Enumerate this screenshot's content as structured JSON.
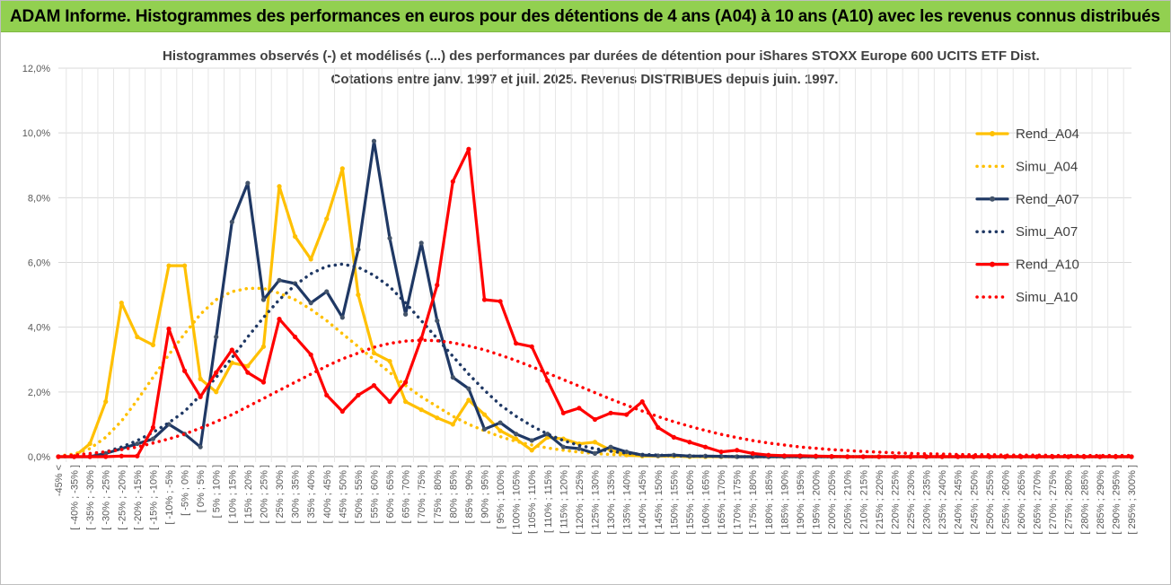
{
  "header": {
    "title": "ADAM Informe. Histogrammes des performances en euros pour des détentions de 4 ans (A04) à 10 ans (A10) avec les revenus connus distribués"
  },
  "chart_data": {
    "type": "line",
    "title": "Histogrammes observés (-) et modélisés (...) des performances par durées de détention pour iShares STOXX Europe 600 UCITS ETF Dist.",
    "subtitle": "Cotations entre janv. 1997 et juil. 2025. Revenus DISTRIBUES depuis juin. 1997.",
    "ylim": [
      0,
      12
    ],
    "yticks": [
      "0,0%",
      "2,0%",
      "4,0%",
      "6,0%",
      "8,0%",
      "10,0%",
      "12,0%"
    ],
    "grid": true,
    "legend_position": "right",
    "categories": [
      "-45% <",
      "[ -40% ; -35% ]",
      "[ -35% ; -30% ]",
      "[ -30% ; -25% ]",
      "[ -25% ; -20% ]",
      "[ -20% ; -15% ]",
      "[ -15% ; -10% ]",
      "[ -10% ; -5% ]",
      "[ -5% ; 0% ]",
      "[ 0% ; 5% ]",
      "[ 5% ; 10% ]",
      "[ 10% ; 15% ]",
      "[ 15% ; 20% ]",
      "[ 20% ; 25% ]",
      "[ 25% ; 30% ]",
      "[ 30% ; 35% ]",
      "[ 35% ; 40% ]",
      "[ 40% ; 45% ]",
      "[ 45% ; 50% ]",
      "[ 50% ; 55% ]",
      "[ 55% ; 60% ]",
      "[ 60% ; 65% ]",
      "[ 65% ; 70% ]",
      "[ 70% ; 75% ]",
      "[ 75% ; 80% ]",
      "[ 80% ; 85% ]",
      "[ 85% ; 90% ]",
      "[ 90% ; 95% ]",
      "[ 95% ; 100% ]",
      "[ 100% ; 105% ]",
      "[ 105% ; 110% ]",
      "[ 110% ; 115% ]",
      "[ 115% ; 120% ]",
      "[ 120% ; 125% ]",
      "[ 125% ; 130% ]",
      "[ 130% ; 135% ]",
      "[ 135% ; 140% ]",
      "[ 140% ; 145% ]",
      "[ 145% ; 150% ]",
      "[ 150% ; 155% ]",
      "[ 155% ; 160% ]",
      "[ 160% ; 165% ]",
      "[ 165% ; 170% ]",
      "[ 170% ; 175% ]",
      "[ 175% ; 180% ]",
      "[ 180% ; 185% ]",
      "[ 185% ; 190% ]",
      "[ 190% ; 195% ]",
      "[ 195% ; 200% ]",
      "[ 200% ; 205% ]",
      "[ 205% ; 210% ]",
      "[ 210% ; 215% ]",
      "[ 215% ; 220% ]",
      "[ 220% ; 225% ]",
      "[ 225% ; 230% ]",
      "[ 230% ; 235% ]",
      "[ 235% ; 240% ]",
      "[ 240% ; 245% ]",
      "[ 245% ; 250% ]",
      "[ 250% ; 255% ]",
      "[ 255% ; 260% ]",
      "[ 260% ; 265% ]",
      "[ 265% ; 270% ]",
      "[ 270% ; 275% ]",
      "[ 275% ; 280% ]",
      "[ 280% ; 285% ]",
      "[ 285% ; 290% ]",
      "[ 290% ; 295% ]",
      "[ 295% ; 300% ]"
    ],
    "series": [
      {
        "name": "Rend_A04",
        "style": "solid",
        "color": "#ffc000",
        "values": [
          0,
          0,
          0.4,
          1.7,
          4.75,
          3.7,
          3.45,
          5.9,
          5.9,
          2.4,
          2.0,
          2.9,
          2.8,
          3.4,
          8.35,
          6.8,
          6.1,
          7.35,
          8.9,
          5.0,
          3.2,
          2.95,
          1.7,
          1.45,
          1.2,
          1.0,
          1.75,
          1.3,
          0.8,
          0.55,
          0.2,
          0.6,
          0.55,
          0.4,
          0.45,
          0.2,
          0.05,
          0.02,
          0.02,
          0.02,
          0,
          0,
          0,
          0,
          0,
          0,
          0,
          0,
          0,
          0,
          0,
          0,
          0,
          0,
          0,
          0,
          0,
          0,
          0,
          0,
          0,
          0,
          0,
          0,
          0,
          0,
          0,
          0,
          0
        ]
      },
      {
        "name": "Simu_A04",
        "style": "dotted",
        "color": "#ffc000",
        "values": [
          0.02,
          0.08,
          0.25,
          0.6,
          1.1,
          1.75,
          2.45,
          3.15,
          3.8,
          4.4,
          4.85,
          5.1,
          5.2,
          5.2,
          5.05,
          4.85,
          4.55,
          4.2,
          3.8,
          3.4,
          3.0,
          2.6,
          2.2,
          1.85,
          1.55,
          1.25,
          1.0,
          0.8,
          0.62,
          0.47,
          0.36,
          0.27,
          0.2,
          0.14,
          0.1,
          0.07,
          0.05,
          0.03,
          0.02,
          0.015,
          0.01,
          0.01,
          0,
          0,
          0,
          0,
          0,
          0,
          0,
          0,
          0,
          0,
          0,
          0,
          0,
          0,
          0,
          0,
          0,
          0,
          0,
          0,
          0,
          0,
          0,
          0,
          0,
          0,
          0
        ]
      },
      {
        "name": "Rend_A07",
        "style": "solid",
        "color": "#1f3864",
        "values": [
          0,
          0,
          0,
          0.1,
          0.25,
          0.4,
          0.55,
          1.0,
          0.7,
          0.3,
          3.7,
          7.25,
          8.45,
          4.85,
          5.45,
          5.35,
          4.75,
          5.1,
          4.3,
          6.4,
          9.75,
          6.75,
          4.4,
          6.6,
          4.2,
          2.45,
          2.1,
          0.85,
          1.05,
          0.7,
          0.5,
          0.7,
          0.3,
          0.25,
          0.1,
          0.3,
          0.15,
          0.05,
          0.03,
          0.05,
          0.02,
          0.02,
          0.01,
          0,
          0,
          0,
          0,
          0,
          0,
          0,
          0,
          0,
          0,
          0,
          0,
          0,
          0,
          0,
          0,
          0,
          0,
          0,
          0,
          0,
          0,
          0,
          0,
          0,
          0
        ]
      },
      {
        "name": "Simu_A07",
        "style": "dotted",
        "color": "#1f3864",
        "values": [
          0,
          0,
          0.05,
          0.15,
          0.3,
          0.5,
          0.75,
          1.05,
          1.4,
          1.9,
          2.45,
          3.05,
          3.7,
          4.3,
          4.85,
          5.3,
          5.65,
          5.88,
          5.95,
          5.85,
          5.6,
          5.25,
          4.75,
          4.2,
          3.65,
          3.1,
          2.55,
          2.05,
          1.6,
          1.25,
          0.95,
          0.7,
          0.5,
          0.35,
          0.25,
          0.17,
          0.11,
          0.07,
          0.05,
          0.03,
          0.02,
          0.01,
          0.01,
          0,
          0,
          0,
          0,
          0,
          0,
          0,
          0,
          0,
          0,
          0,
          0,
          0,
          0,
          0,
          0,
          0,
          0,
          0,
          0,
          0,
          0,
          0,
          0,
          0,
          0
        ]
      },
      {
        "name": "Rend_A10",
        "style": "solid",
        "color": "#ff0000",
        "values": [
          0,
          0,
          0,
          0,
          0.02,
          0.02,
          0.9,
          3.95,
          2.65,
          1.85,
          2.6,
          3.3,
          2.6,
          2.3,
          4.25,
          3.7,
          3.15,
          1.9,
          1.4,
          1.9,
          2.2,
          1.7,
          2.3,
          3.65,
          5.3,
          8.5,
          9.5,
          4.85,
          4.8,
          3.5,
          3.4,
          2.35,
          1.35,
          1.5,
          1.15,
          1.35,
          1.3,
          1.7,
          0.9,
          0.6,
          0.45,
          0.3,
          0.15,
          0.2,
          0.1,
          0.05,
          0.03,
          0.03,
          0.02,
          0.01,
          0,
          0,
          0,
          0,
          0,
          0,
          0,
          0,
          0,
          0,
          0,
          0,
          0,
          0,
          0,
          0,
          0,
          0,
          0
        ]
      },
      {
        "name": "Simu_A10",
        "style": "dotted",
        "color": "#ff0000",
        "values": [
          0.02,
          0.05,
          0.1,
          0.15,
          0.22,
          0.3,
          0.42,
          0.55,
          0.7,
          0.88,
          1.08,
          1.3,
          1.55,
          1.8,
          2.05,
          2.3,
          2.55,
          2.8,
          3.02,
          3.2,
          3.38,
          3.5,
          3.57,
          3.6,
          3.58,
          3.52,
          3.42,
          3.3,
          3.14,
          2.97,
          2.78,
          2.58,
          2.38,
          2.18,
          1.98,
          1.78,
          1.59,
          1.41,
          1.24,
          1.08,
          0.94,
          0.81,
          0.69,
          0.59,
          0.5,
          0.42,
          0.36,
          0.3,
          0.26,
          0.22,
          0.19,
          0.16,
          0.14,
          0.12,
          0.1,
          0.09,
          0.08,
          0.07,
          0.06,
          0.06,
          0.05,
          0.05,
          0.05,
          0.04,
          0.04,
          0.04,
          0.04,
          0.04,
          0.04
        ]
      }
    ]
  }
}
